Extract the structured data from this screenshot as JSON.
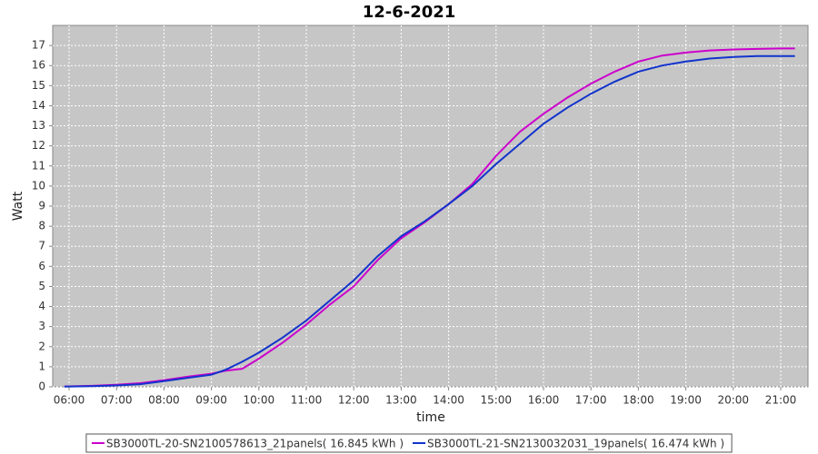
{
  "chart_data": {
    "type": "line",
    "title": "12-6-2021",
    "x_label": "time",
    "y_label": "Watt",
    "x": [
      5.9,
      6.5,
      7,
      7.5,
      8,
      8.5,
      9,
      9.3,
      9.65,
      10,
      10.5,
      11,
      11.5,
      12,
      12.5,
      13,
      13.5,
      14,
      14.5,
      15,
      15.5,
      16,
      16.5,
      17,
      17.5,
      18,
      18.5,
      19,
      19.5,
      20,
      20.5,
      21,
      21.3
    ],
    "series": [
      {
        "name": "SB3000TL-20-SN2100578613_21panels( 16.845 kWh )",
        "color": "#cc00cc",
        "values": [
          0.02,
          0.05,
          0.1,
          0.18,
          0.33,
          0.5,
          0.65,
          0.8,
          0.9,
          1.4,
          2.2,
          3.1,
          4.1,
          5.0,
          6.3,
          7.4,
          8.2,
          9.1,
          10.1,
          11.5,
          12.7,
          13.6,
          14.4,
          15.1,
          15.7,
          16.2,
          16.5,
          16.65,
          16.75,
          16.8,
          16.83,
          16.85,
          16.85
        ]
      },
      {
        "name": "SB3000TL-21-SN2130032031_19panels( 16.474 kWh )",
        "color": "#1133cc",
        "values": [
          0.01,
          0.03,
          0.07,
          0.13,
          0.28,
          0.45,
          0.6,
          0.85,
          1.25,
          1.7,
          2.45,
          3.3,
          4.3,
          5.3,
          6.5,
          7.5,
          8.25,
          9.1,
          10.0,
          11.1,
          12.1,
          13.1,
          13.9,
          14.6,
          15.2,
          15.7,
          16.0,
          16.2,
          16.35,
          16.43,
          16.47,
          16.47,
          16.47
        ]
      }
    ],
    "xlim": [
      5.655,
      21.575
    ],
    "xticks": [
      {
        "value": 6,
        "label": "06:00"
      },
      {
        "value": 7,
        "label": "07:00"
      },
      {
        "value": 8,
        "label": "08:00"
      },
      {
        "value": 9,
        "label": "09:00"
      },
      {
        "value": 10,
        "label": "10:00"
      },
      {
        "value": 11,
        "label": "11:00"
      },
      {
        "value": 12,
        "label": "12:00"
      },
      {
        "value": 13,
        "label": "13:00"
      },
      {
        "value": 14,
        "label": "14:00"
      },
      {
        "value": 15,
        "label": "15:00"
      },
      {
        "value": 16,
        "label": "16:00"
      },
      {
        "value": 17,
        "label": "17:00"
      },
      {
        "value": 18,
        "label": "18:00"
      },
      {
        "value": 19,
        "label": "19:00"
      },
      {
        "value": 20,
        "label": "20:00"
      },
      {
        "value": 21,
        "label": "21:00"
      }
    ],
    "ylim": [
      0,
      18
    ],
    "yticks": [
      0,
      1,
      2,
      3,
      4,
      5,
      6,
      7,
      8,
      9,
      10,
      11,
      12,
      13,
      14,
      15,
      16,
      17
    ],
    "grid": true,
    "legend": "bottom"
  }
}
